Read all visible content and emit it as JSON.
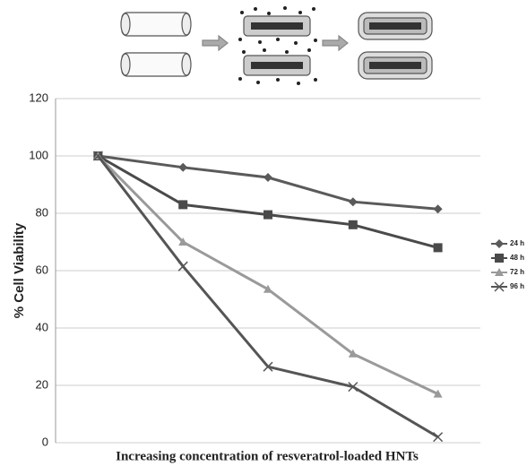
{
  "chart_data": {
    "type": "line",
    "y_label": "% Cell Viability",
    "x_label": "Increasing concentration of resveratrol-loaded HNTs",
    "categories": [
      null,
      null,
      null,
      null,
      null
    ],
    "series": [
      {
        "name": "24 h",
        "color": "#5a5a5a",
        "marker": "diamond",
        "values": [
          100,
          96,
          92.5,
          84,
          81.5
        ]
      },
      {
        "name": "48 h",
        "color": "#4a4a4a",
        "marker": "square",
        "values": [
          100,
          83,
          79.5,
          76,
          68
        ]
      },
      {
        "name": "72 h",
        "color": "#9a9a9a",
        "marker": "triangle",
        "values": [
          100,
          70,
          53.5,
          31,
          17
        ]
      },
      {
        "name": "96 h",
        "color": "#555555",
        "marker": "x",
        "values": [
          100,
          61.5,
          26.5,
          19.5,
          2
        ]
      }
    ],
    "ylim": [
      0,
      120
    ],
    "yticks": [
      0,
      20,
      40,
      60,
      80,
      100,
      120
    ],
    "grid": true
  }
}
